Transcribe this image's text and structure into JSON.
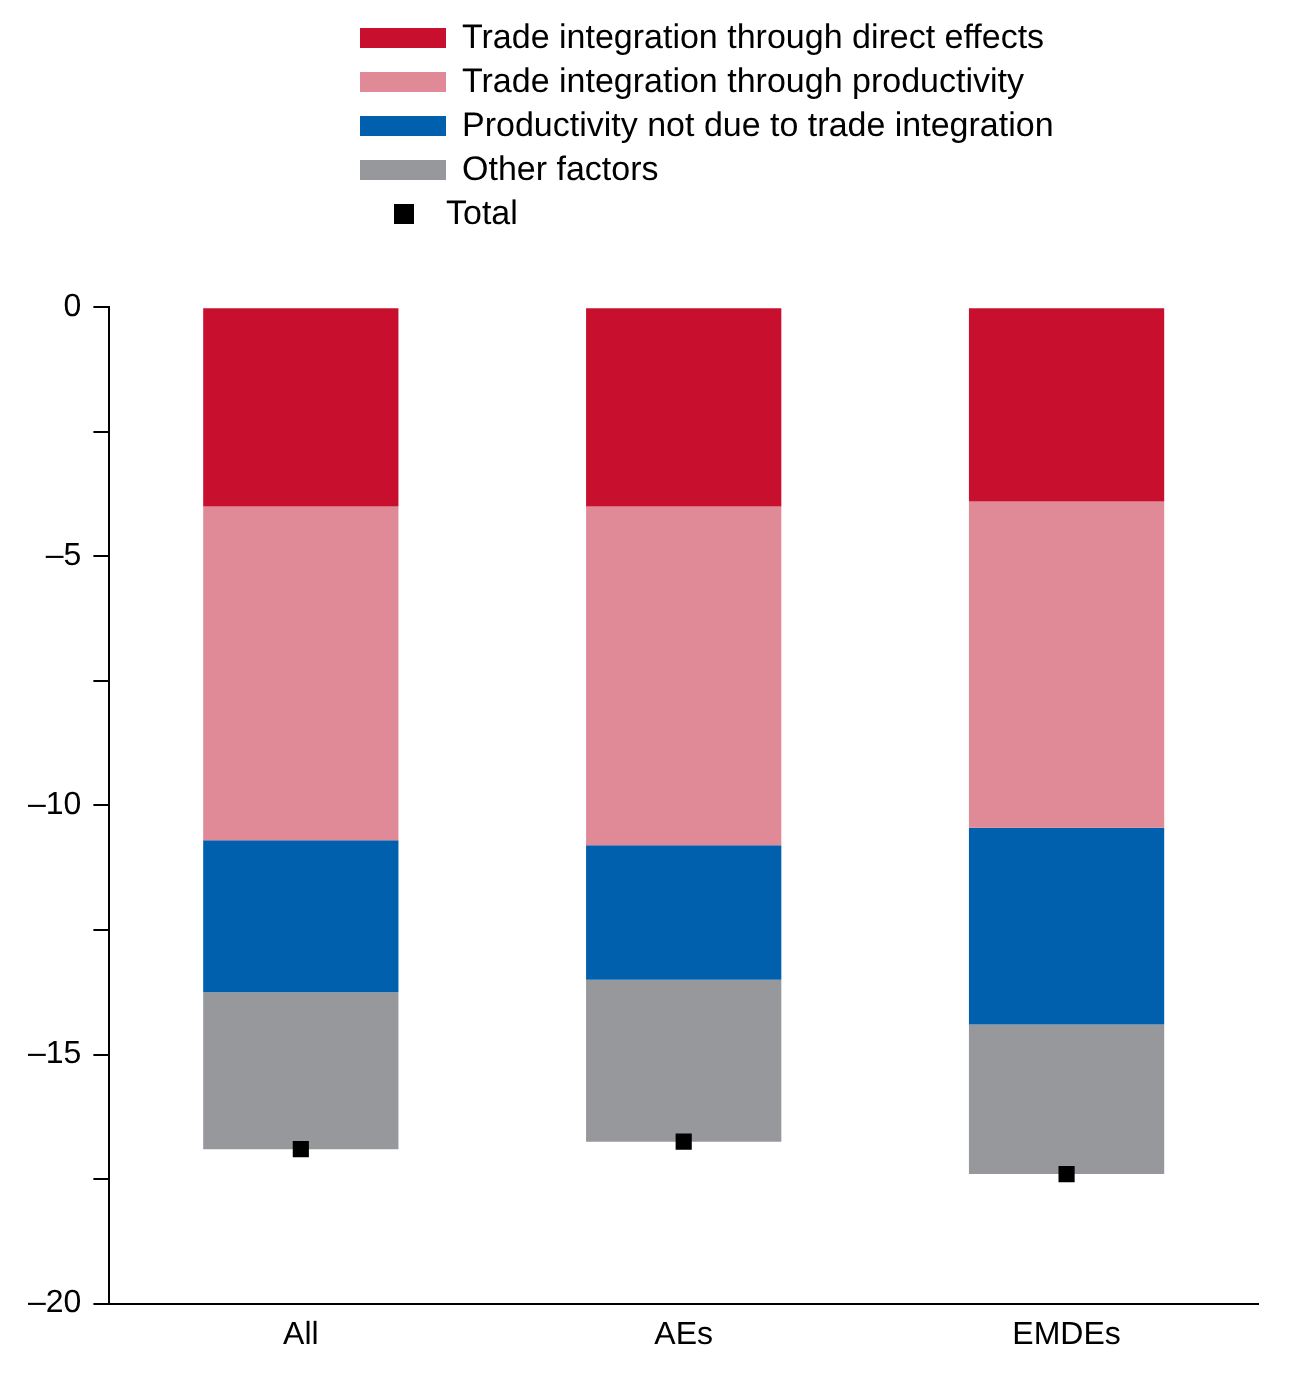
{
  "chart_data": {
    "type": "bar",
    "stacked": true,
    "categories": [
      "All",
      "AEs",
      "EMDEs"
    ],
    "series": [
      {
        "name": "Trade integration through direct effects",
        "color": "#c8102e",
        "values": [
          -4.0,
          -4.0,
          -3.9
        ]
      },
      {
        "name": "Trade integration through productivity",
        "color": "#e08a97",
        "values": [
          -6.7,
          -6.8,
          -6.55
        ]
      },
      {
        "name": "Productivity not due to trade integration",
        "color": "#0060ae",
        "values": [
          -3.05,
          -2.7,
          -3.95
        ]
      },
      {
        "name": "Other factors",
        "color": "#97989c",
        "values": [
          -3.15,
          -3.25,
          -3.0
        ]
      },
      {
        "name": "Total",
        "type": "scatter",
        "color": "#000000",
        "marker": "square",
        "values": [
          -16.9,
          -16.75,
          -17.4
        ]
      }
    ],
    "ylim": [
      -20,
      0
    ],
    "yticks": [
      {
        "value": -20,
        "label": "–20"
      },
      {
        "value": -17.5,
        "label": null
      },
      {
        "value": -15,
        "label": "–15"
      },
      {
        "value": -12.5,
        "label": null
      },
      {
        "value": -10,
        "label": "–10"
      },
      {
        "value": -7.5,
        "label": null
      },
      {
        "value": -5,
        "label": "–5"
      },
      {
        "value": -2.5,
        "label": null
      },
      0
    ],
    "grid": false,
    "legend": "top"
  }
}
